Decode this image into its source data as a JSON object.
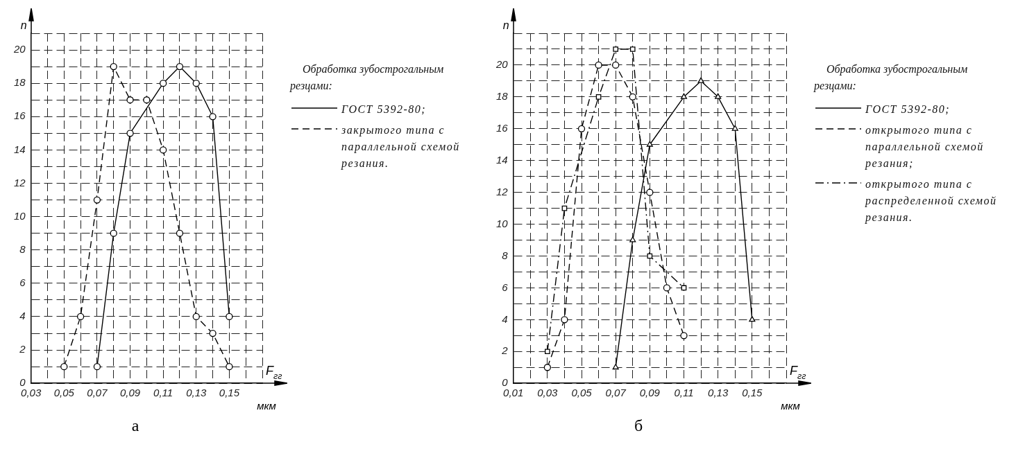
{
  "chart_data": [
    {
      "type": "line",
      "title": "а",
      "xlabel": "F$_{гг}$",
      "ylabel": "n",
      "legend_title": "Обработка зубострогальным резцами:",
      "annotations": [
        "мкм"
      ],
      "legend": "right",
      "grid": true,
      "marker": "circle",
      "xlim": [
        0.03,
        0.17
      ],
      "xticks": [
        {
          "value": 0.03,
          "label": "0,03"
        },
        {
          "value": 0.04,
          "label": null
        },
        {
          "value": 0.05,
          "label": "0,05"
        },
        {
          "value": 0.06,
          "label": null
        },
        {
          "value": 0.07,
          "label": "0,07"
        },
        {
          "value": 0.08,
          "label": null
        },
        {
          "value": 0.09,
          "label": "0,09"
        },
        {
          "value": 0.1,
          "label": null
        },
        {
          "value": 0.11,
          "label": "0,11"
        },
        {
          "value": 0.12,
          "label": null
        },
        {
          "value": 0.13,
          "label": "0,13"
        },
        {
          "value": 0.14,
          "label": null
        },
        {
          "value": 0.15,
          "label": "0,15"
        },
        {
          "value": 0.16,
          "label": null
        },
        {
          "value": 0.17,
          "label": null
        }
      ],
      "ylim": [
        0,
        21
      ],
      "yticks": [
        0,
        {
          "value": 1,
          "label": null
        },
        2,
        {
          "value": 3,
          "label": null
        },
        4,
        {
          "value": 5,
          "label": null
        },
        6,
        {
          "value": 7,
          "label": null
        },
        8,
        {
          "value": 9,
          "label": null
        },
        10,
        {
          "value": 11,
          "label": null
        },
        12,
        {
          "value": 13,
          "label": null
        },
        14,
        {
          "value": 15,
          "label": null
        },
        16,
        {
          "value": 17,
          "label": null
        },
        18,
        {
          "value": 19,
          "label": null
        },
        20,
        {
          "value": 21,
          "label": null
        }
      ],
      "series": [
        {
          "name": "ГОСТ 5392-80;",
          "color": "#000000",
          "line_style": "solid",
          "x": [
            0.07,
            0.08,
            0.09,
            0.11,
            0.12,
            0.13,
            0.14,
            0.15
          ],
          "values": [
            1,
            9,
            15,
            18,
            19,
            18,
            16,
            4
          ]
        },
        {
          "name": "закрытого типа с параллельной схемой резания.",
          "color": "#000000",
          "line_style": "dashed",
          "x": [
            0.05,
            0.06,
            0.07,
            0.08,
            0.09,
            0.1,
            0.11,
            0.12,
            0.13,
            0.14,
            0.15
          ],
          "values": [
            1,
            4,
            11,
            19,
            17,
            17,
            14,
            9,
            4,
            3,
            1
          ]
        }
      ]
    },
    {
      "type": "line",
      "title": "б",
      "xlabel": "F$_{гг}$",
      "ylabel": "n",
      "legend_title": "Обработка зубострогальным резцами:",
      "annotations": [
        "мкм"
      ],
      "legend": "right",
      "grid": true,
      "xlim": [
        0.01,
        0.17
      ],
      "xticks": [
        {
          "value": 0.01,
          "label": "0,01"
        },
        {
          "value": 0.02,
          "label": null
        },
        {
          "value": 0.03,
          "label": "0,03"
        },
        {
          "value": 0.04,
          "label": null
        },
        {
          "value": 0.05,
          "label": "0,05"
        },
        {
          "value": 0.06,
          "label": null
        },
        {
          "value": 0.07,
          "label": "0,07"
        },
        {
          "value": 0.08,
          "label": null
        },
        {
          "value": 0.09,
          "label": "0,09"
        },
        {
          "value": 0.1,
          "label": null
        },
        {
          "value": 0.11,
          "label": "0,11"
        },
        {
          "value": 0.12,
          "label": null
        },
        {
          "value": 0.13,
          "label": "0,13"
        },
        {
          "value": 0.14,
          "label": null
        },
        {
          "value": 0.15,
          "label": "0,15"
        },
        {
          "value": 0.16,
          "label": null
        },
        {
          "value": 0.17,
          "label": null
        }
      ],
      "ylim": [
        0,
        22
      ],
      "yticks": [
        0,
        {
          "value": 1,
          "label": null
        },
        2,
        {
          "value": 3,
          "label": null
        },
        4,
        {
          "value": 5,
          "label": null
        },
        6,
        {
          "value": 7,
          "label": null
        },
        8,
        {
          "value": 9,
          "label": null
        },
        10,
        {
          "value": 11,
          "label": null
        },
        12,
        {
          "value": 13,
          "label": null
        },
        14,
        {
          "value": 15,
          "label": null
        },
        16,
        {
          "value": 17,
          "label": null
        },
        18,
        {
          "value": 19,
          "label": null
        },
        20,
        {
          "value": 21,
          "label": null
        },
        {
          "value": 22,
          "label": null
        }
      ],
      "series": [
        {
          "name": "ГОСТ 5392-80;",
          "color": "#000000",
          "line_style": "solid",
          "marker": "triangle",
          "x": [
            0.07,
            0.08,
            0.09,
            0.11,
            0.12,
            0.13,
            0.14,
            0.15
          ],
          "values": [
            1,
            9,
            15,
            18,
            19,
            18,
            16,
            4
          ]
        },
        {
          "name": "открытого типа с параллельной схемой резания;",
          "color": "#000000",
          "line_style": "dashed",
          "marker": "circle",
          "x": [
            0.03,
            0.04,
            0.05,
            0.06,
            0.07,
            0.08,
            0.09,
            0.1,
            0.11
          ],
          "values": [
            1,
            4,
            16,
            20,
            20,
            18,
            12,
            6,
            3
          ]
        },
        {
          "name": "открытого типа с распределенной схемой резания.",
          "color": "#000000",
          "line_style": "dashdot",
          "marker": "square",
          "x": [
            0.03,
            0.04,
            0.06,
            0.07,
            0.08,
            0.09,
            0.11
          ],
          "values": [
            2,
            11,
            18,
            21,
            21,
            8,
            6
          ]
        }
      ]
    }
  ]
}
